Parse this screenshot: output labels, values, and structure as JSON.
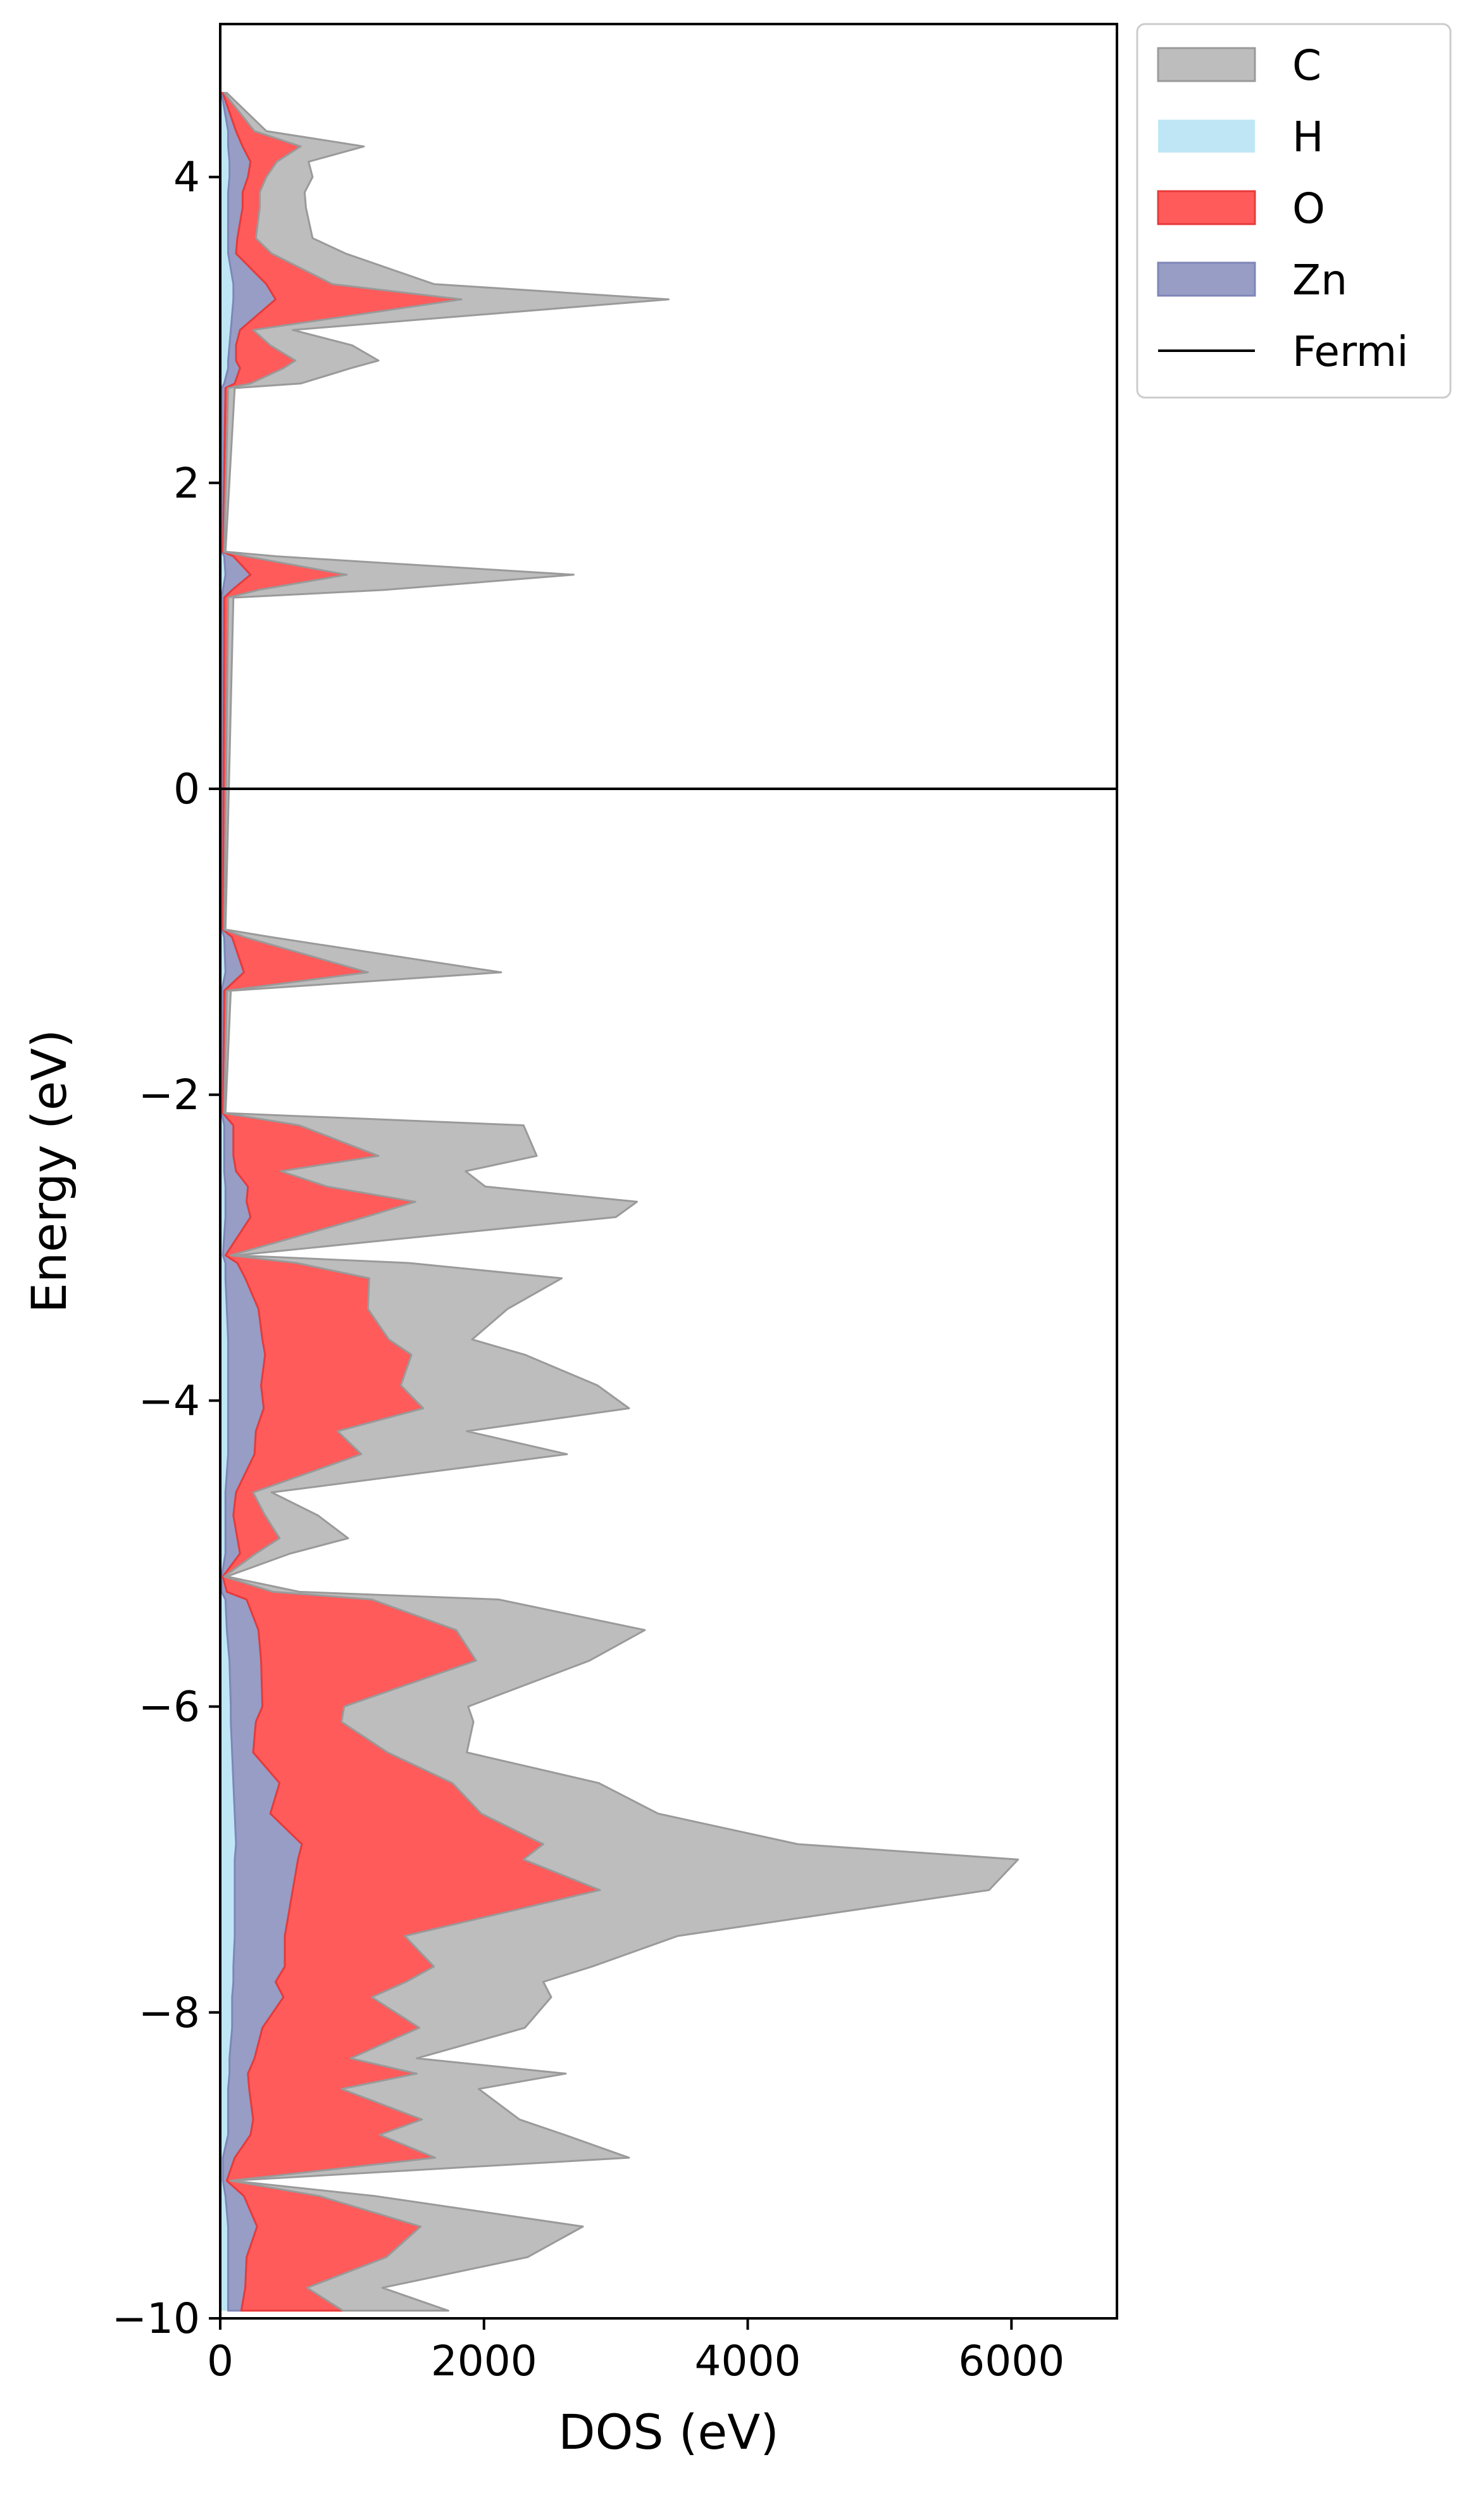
{
  "chart_data": {
    "type": "area",
    "orientation": "horizontal-stacked",
    "title": "",
    "xlabel": "DOS (eV)",
    "ylabel": "Energy (eV)",
    "xlim": [
      0,
      6800
    ],
    "ylim": [
      -10,
      5
    ],
    "xticks": [
      0,
      2000,
      4000,
      6000
    ],
    "yticks": [
      -10,
      -8,
      -6,
      -4,
      -2,
      0,
      2,
      4
    ],
    "xtick_labels": [
      "0",
      "2000",
      "4000",
      "6000"
    ],
    "ytick_labels": [
      "−10",
      "−8",
      "−6",
      "−4",
      "−2",
      "0",
      "2",
      "4"
    ],
    "grid": false,
    "legend_position": "outside-top-right",
    "fermi_level": 0,
    "colors": {
      "C": "#bdbdbd",
      "H": "#bfe6f5",
      "O": "#ff5b5b",
      "Zn": "#979dc4",
      "Fermi": "#000000"
    },
    "legend": [
      {
        "label": "C",
        "kind": "patch"
      },
      {
        "label": "H",
        "kind": "patch"
      },
      {
        "label": "O",
        "kind": "patch"
      },
      {
        "label": "Zn",
        "kind": "patch"
      },
      {
        "label": "Fermi",
        "kind": "line"
      }
    ],
    "energy": [
      4.55,
      4.3,
      4.2,
      4.1,
      4.0,
      3.9,
      3.8,
      3.6,
      3.5,
      3.3,
      3.2,
      3.0,
      2.9,
      2.8,
      2.75,
      2.65,
      2.62,
      1.55,
      1.52,
      1.4,
      1.3,
      1.25,
      -0.92,
      -0.97,
      -1.2,
      -1.32,
      -2.12,
      -2.2,
      -2.4,
      -2.5,
      -2.6,
      -2.7,
      -2.8,
      -3.05,
      -3.1,
      -3.2,
      -3.4,
      -3.6,
      -3.7,
      -3.9,
      -4.05,
      -4.2,
      -4.35,
      -4.6,
      -4.75,
      -4.9,
      -5.0,
      -5.15,
      -5.25,
      -5.3,
      -5.5,
      -5.7,
      -6.0,
      -6.1,
      -6.3,
      -6.5,
      -6.7,
      -6.9,
      -7.0,
      -7.2,
      -7.5,
      -7.7,
      -7.8,
      -7.9,
      -8.1,
      -8.3,
      -8.4,
      -8.5,
      -8.7,
      -8.8,
      -8.95,
      -9.1,
      -9.2,
      -9.4,
      -9.6,
      -9.8,
      -9.95
    ],
    "series": [
      {
        "name": "H",
        "values": [
          10,
          60,
          60,
          70,
          70,
          60,
          60,
          60,
          60,
          100,
          100,
          80,
          70,
          60,
          60,
          30,
          10,
          10,
          30,
          40,
          20,
          10,
          10,
          30,
          40,
          10,
          10,
          30,
          30,
          30,
          40,
          40,
          40,
          20,
          40,
          40,
          50,
          60,
          60,
          60,
          60,
          60,
          60,
          40,
          40,
          40,
          40,
          10,
          10,
          40,
          50,
          70,
          80,
          80,
          90,
          100,
          110,
          120,
          110,
          110,
          110,
          100,
          100,
          90,
          90,
          70,
          70,
          60,
          60,
          60,
          20,
          20,
          40,
          60,
          60,
          60,
          60
        ]
      },
      {
        "name": "Zn",
        "values": [
          10,
          60,
          110,
          160,
          140,
          110,
          110,
          70,
          60,
          250,
          320,
          70,
          50,
          60,
          90,
          80,
          30,
          10,
          70,
          190,
          70,
          20,
          10,
          60,
          140,
          20,
          10,
          70,
          70,
          90,
          170,
          160,
          190,
          20,
          90,
          150,
          240,
          260,
          280,
          250,
          270,
          210,
          200,
          80,
          60,
          90,
          110,
          10,
          40,
          160,
          240,
          240,
          240,
          190,
          160,
          350,
          270,
          500,
          480,
          440,
          380,
          390,
          320,
          390,
          230,
          190,
          140,
          160,
          190,
          170,
          90,
          30,
          140,
          220,
          140,
          130,
          100
        ]
      },
      {
        "name": "O",
        "values": [
          10,
          140,
          440,
          200,
          140,
          130,
          130,
          140,
          270,
          500,
          1410,
          100,
          260,
          450,
          330,
          120,
          20,
          10,
          100,
          730,
          200,
          30,
          10,
          100,
          940,
          20,
          10,
          500,
          1100,
          340,
          600,
          1280,
          870,
          40,
          450,
          940,
          830,
          960,
          1110,
          1060,
          1210,
          620,
          810,
          130,
          240,
          320,
          120,
          10,
          350,
          950,
          1500,
          1630,
          620,
          650,
          1020,
          1310,
          1600,
          1830,
          1710,
          2330,
          910,
          1130,
          990,
          670,
          1190,
          730,
          1280,
          700,
          1280,
          980,
          1520,
          30,
          570,
          1240,
          1060,
          470,
          770
        ]
      },
      {
        "name": "C",
        "values": [
          20,
          90,
          480,
          240,
          350,
          340,
          350,
          430,
          560,
          770,
          1570,
          300,
          620,
          630,
          510,
          380,
          50,
          10,
          230,
          1720,
          950,
          40,
          10,
          200,
          1010,
          30,
          10,
          1700,
          1200,
          1400,
          1200,
          1680,
          1900,
          40,
          850,
          1460,
          1060,
          630,
          860,
          1490,
          1560,
          980,
          1560,
          140,
          400,
          520,
          260,
          20,
          200,
          960,
          1430,
          860,
          940,
          1000,
          600,
          1110,
          1340,
          1930,
          3750,
          2950,
          2070,
          1200,
          1040,
          1360,
          800,
          500,
          1130,
          1040,
          740,
          1400,
          1470,
          10,
          420,
          1230,
          1070,
          570,
          800
        ]
      }
    ]
  }
}
